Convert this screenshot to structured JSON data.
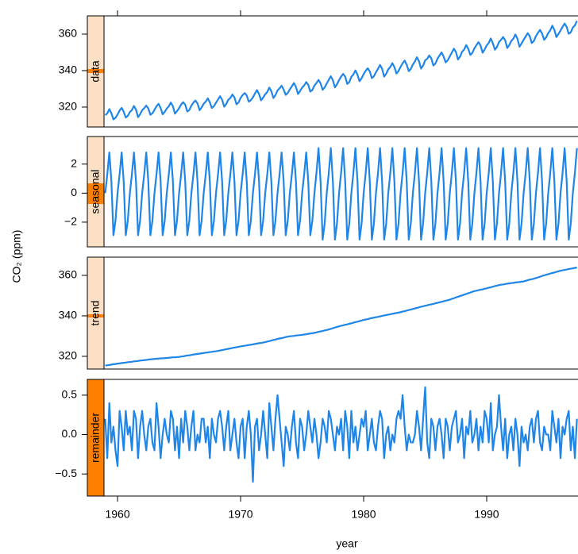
{
  "chart_data": {
    "type": "line",
    "ylabel": "CO₂ (ppm)",
    "xlabel": "year",
    "line_color": "#1f86e8",
    "xlim": [
      1958.9,
      1997.42
    ],
    "xticks": [
      1960,
      1970,
      1980,
      1990
    ],
    "x": [
      1959,
      1959.167,
      1959.333,
      1959.5,
      1959.667,
      1959.833,
      1960,
      1960.167,
      1960.333,
      1960.5,
      1960.667,
      1960.833,
      1961,
      1961.167,
      1961.333,
      1961.5,
      1961.667,
      1961.833,
      1962,
      1962.167,
      1962.333,
      1962.5,
      1962.667,
      1962.833,
      1963,
      1963.167,
      1963.333,
      1963.5,
      1963.667,
      1963.833,
      1964,
      1964.167,
      1964.333,
      1964.5,
      1964.667,
      1964.833,
      1965,
      1965.167,
      1965.333,
      1965.5,
      1965.667,
      1965.833,
      1966,
      1966.167,
      1966.333,
      1966.5,
      1966.667,
      1966.833,
      1967,
      1967.167,
      1967.333,
      1967.5,
      1967.667,
      1967.833,
      1968,
      1968.167,
      1968.333,
      1968.5,
      1968.667,
      1968.833,
      1969,
      1969.167,
      1969.333,
      1969.5,
      1969.667,
      1969.833,
      1970,
      1970.167,
      1970.333,
      1970.5,
      1970.667,
      1970.833,
      1971,
      1971.167,
      1971.333,
      1971.5,
      1971.667,
      1971.833,
      1972,
      1972.167,
      1972.333,
      1972.5,
      1972.667,
      1972.833,
      1973,
      1973.167,
      1973.333,
      1973.5,
      1973.667,
      1973.833,
      1974,
      1974.167,
      1974.333,
      1974.5,
      1974.667,
      1974.833,
      1975,
      1975.167,
      1975.333,
      1975.5,
      1975.667,
      1975.833,
      1976,
      1976.167,
      1976.333,
      1976.5,
      1976.667,
      1976.833,
      1977,
      1977.167,
      1977.333,
      1977.5,
      1977.667,
      1977.833,
      1978,
      1978.167,
      1978.333,
      1978.5,
      1978.667,
      1978.833,
      1979,
      1979.167,
      1979.333,
      1979.5,
      1979.667,
      1979.833,
      1980,
      1980.167,
      1980.333,
      1980.5,
      1980.667,
      1980.833,
      1981,
      1981.167,
      1981.333,
      1981.5,
      1981.667,
      1981.833,
      1982,
      1982.167,
      1982.333,
      1982.5,
      1982.667,
      1982.833,
      1983,
      1983.167,
      1983.333,
      1983.5,
      1983.667,
      1983.833,
      1984,
      1984.167,
      1984.333,
      1984.5,
      1984.667,
      1984.833,
      1985,
      1985.167,
      1985.333,
      1985.5,
      1985.667,
      1985.833,
      1986,
      1986.167,
      1986.333,
      1986.5,
      1986.667,
      1986.833,
      1987,
      1987.167,
      1987.333,
      1987.5,
      1987.667,
      1987.833,
      1988,
      1988.167,
      1988.333,
      1988.5,
      1988.667,
      1988.833,
      1989,
      1989.167,
      1989.333,
      1989.5,
      1989.667,
      1989.833,
      1990,
      1990.167,
      1990.333,
      1990.5,
      1990.667,
      1990.833,
      1991,
      1991.167,
      1991.333,
      1991.5,
      1991.667,
      1991.833,
      1992,
      1992.167,
      1992.333,
      1992.5,
      1992.667,
      1992.833,
      1993,
      1993.167,
      1993.333,
      1993.5,
      1993.667,
      1993.833,
      1994,
      1994.167,
      1994.333,
      1994.5,
      1994.667,
      1994.833,
      1995,
      1995.167,
      1995.333,
      1995.5,
      1995.667,
      1995.833,
      1996,
      1996.167,
      1996.333,
      1996.5,
      1996.667,
      1996.833,
      1997,
      1997.167,
      1997.333
    ],
    "series": [
      {
        "name": "data",
        "ylim": [
          309.1,
          370
        ],
        "yticks": [
          320,
          340,
          360
        ],
        "values": [
          315.6,
          316.6,
          318.9,
          316.6,
          313.3,
          314.1,
          316.0,
          318.1,
          319.6,
          317.4,
          314.3,
          315.2,
          317.3,
          318.4,
          320.6,
          318.6,
          314.5,
          316.1,
          318.3,
          319.4,
          320.8,
          319.3,
          315.8,
          316.6,
          318.5,
          320.5,
          321.8,
          319.5,
          316.1,
          317.4,
          319.2,
          320.5,
          322.5,
          320.5,
          316.4,
          317.8,
          319.4,
          321.4,
          322.7,
          321.3,
          317.6,
          318.4,
          320.8,
          322.5,
          323.6,
          322.0,
          318.3,
          319.8,
          321.8,
          323.0,
          324.8,
          322.6,
          319.5,
          320.5,
          322.4,
          324.2,
          326.0,
          324.0,
          320.2,
          321.7,
          324.0,
          325.0,
          326.9,
          325.3,
          321.5,
          322.5,
          325.0,
          326.6,
          327.7,
          326.3,
          323.0,
          323.8,
          325.3,
          327.5,
          329.3,
          327.1,
          323.7,
          325.2,
          327.0,
          328.3,
          330.7,
          328.7,
          325.0,
          326.6,
          329.1,
          330.3,
          331.7,
          329.6,
          326.7,
          327.8,
          329.7,
          331.4,
          333.2,
          331.0,
          327.2,
          328.8,
          330.7,
          331.9,
          333.7,
          332.2,
          328.5,
          329.4,
          331.8,
          333.2,
          334.9,
          333.0,
          329.5,
          330.8,
          332.9,
          335.0,
          336.9,
          334.7,
          330.8,
          332.5,
          334.8,
          336.7,
          338.2,
          336.7,
          332.7,
          333.7,
          336.6,
          337.9,
          340.1,
          337.7,
          334.2,
          335.8,
          338.1,
          339.9,
          341.3,
          339.5,
          335.9,
          336.9,
          339.1,
          341.0,
          343.1,
          341.0,
          336.7,
          338.3,
          340.7,
          342.0,
          344.1,
          341.9,
          338.4,
          339.8,
          342.0,
          344.0,
          345.5,
          343.2,
          339.7,
          340.9,
          343.3,
          345.1,
          347.3,
          345.1,
          341.1,
          342.8,
          345.6,
          346.5,
          348.3,
          346.7,
          342.8,
          343.9,
          346.5,
          348.3,
          350.0,
          347.7,
          344.5,
          345.7,
          347.8,
          349.9,
          352.0,
          350.2,
          346.1,
          347.7,
          350.3,
          351.6,
          354.0,
          352.0,
          348.6,
          349.7,
          352.2,
          354.0,
          355.6,
          353.8,
          349.8,
          351.6,
          353.8,
          355.2,
          357.6,
          355.0,
          351.5,
          352.9,
          355.7,
          356.9,
          358.4,
          356.7,
          352.4,
          353.9,
          356.3,
          357.5,
          359.8,
          357.4,
          353.1,
          354.9,
          356.9,
          358.7,
          360.5,
          358.8,
          355.1,
          356.2,
          358.9,
          360.7,
          362.3,
          360.3,
          356.9,
          358.2,
          360.6,
          362.1,
          364.6,
          362.3,
          358.4,
          360.1,
          362.0,
          364.0,
          365.8,
          363.9,
          360.2,
          361.0,
          363.6,
          364.8,
          367.2
        ]
      },
      {
        "name": "seasonal",
        "ylim": [
          -3.7,
          3.9
        ],
        "yticks": [
          {
            "value": -2,
            "label": "−2"
          },
          0,
          2
        ],
        "values": [
          0,
          1.3,
          2.8,
          0.8,
          -2.9,
          -1.9,
          0,
          1.3,
          2.8,
          0.8,
          -2.9,
          -1.9,
          0,
          1.3,
          2.8,
          0.8,
          -2.9,
          -1.9,
          0,
          1.3,
          2.8,
          0.8,
          -2.9,
          -1.9,
          0,
          1.3,
          2.8,
          0.8,
          -2.9,
          -1.9,
          0,
          1.3,
          2.8,
          0.8,
          -2.9,
          -1.9,
          0,
          1.3,
          2.8,
          0.8,
          -2.9,
          -1.9,
          0,
          1.3,
          2.8,
          0.8,
          -2.9,
          -1.9,
          0,
          1.3,
          2.8,
          0.8,
          -2.9,
          -1.9,
          0,
          1.3,
          2.8,
          0.8,
          -2.9,
          -1.9,
          0,
          1.3,
          2.8,
          0.8,
          -2.9,
          -1.9,
          0,
          1.3,
          2.8,
          0.8,
          -2.9,
          -1.9,
          0,
          1.3,
          2.8,
          0.8,
          -2.9,
          -1.9,
          0,
          1.3,
          2.8,
          0.8,
          -2.9,
          -1.9,
          0,
          1.3,
          2.8,
          0.8,
          -2.9,
          -1.9,
          0,
          1.3,
          2.8,
          0.8,
          -2.9,
          -1.9,
          0,
          1.3,
          2.8,
          0.8,
          -2.9,
          -1.9,
          0,
          1.4,
          3.1,
          0.8,
          -3.2,
          -2.1,
          0,
          1.4,
          3.1,
          0.8,
          -3.2,
          -2.1,
          0,
          1.4,
          3.1,
          0.8,
          -3.2,
          -2.1,
          0,
          1.4,
          3.1,
          0.8,
          -3.2,
          -2.1,
          0,
          1.4,
          3.1,
          0.8,
          -3.2,
          -2.1,
          0,
          1.4,
          3.1,
          0.8,
          -3.2,
          -2.1,
          0,
          1.4,
          3.1,
          0.8,
          -3.2,
          -2.1,
          0,
          1.4,
          3.1,
          0.8,
          -3.2,
          -2.1,
          0,
          1.4,
          3.1,
          0.8,
          -3.2,
          -2.1,
          0,
          1.4,
          3.1,
          0.8,
          -3.2,
          -2.1,
          0,
          1.4,
          3.1,
          0.8,
          -3.2,
          -2.1,
          0,
          1.4,
          3.1,
          0.8,
          -3.2,
          -2.1,
          0,
          1.4,
          3.1,
          0.8,
          -3.2,
          -2.1,
          0,
          1.4,
          3.1,
          0.8,
          -3.2,
          -2.1,
          0,
          1.4,
          3.1,
          0.8,
          -3.2,
          -2.1,
          0,
          1.4,
          3.1,
          0.8,
          -3.2,
          -2.1,
          0,
          1.4,
          3.1,
          0.8,
          -3.2,
          -2.1,
          0,
          1.4,
          3.1,
          0.8,
          -3.2,
          -2.1,
          0,
          1.4,
          3.1,
          0.8,
          -3.2,
          -2.1,
          0,
          1.4,
          3.1,
          0.8,
          -3.2,
          -2.1,
          0,
          1.4,
          3.1,
          0.8,
          -3.2,
          -2.1,
          0,
          1.4,
          3.1
        ]
      },
      {
        "name": "trend",
        "ylim": [
          313.7,
          369
        ],
        "yticks": [
          320,
          340,
          360
        ],
        "values": [
          315.4,
          315.6,
          315.7,
          315.9,
          316.1,
          316.2,
          316.4,
          316.5,
          316.7,
          316.8,
          316.9,
          317.1,
          317.2,
          317.3,
          317.5,
          317.6,
          317.7,
          317.9,
          318.0,
          318.1,
          318.2,
          318.4,
          318.5,
          318.6,
          318.7,
          318.8,
          318.9,
          319.0,
          319.0,
          319.1,
          319.2,
          319.3,
          319.4,
          319.5,
          319.5,
          319.6,
          319.7,
          319.9,
          320.0,
          320.2,
          320.4,
          320.5,
          320.7,
          320.9,
          321.0,
          321.2,
          321.3,
          321.5,
          321.6,
          321.8,
          321.9,
          322.1,
          322.2,
          322.4,
          322.5,
          322.7,
          322.9,
          323.1,
          323.3,
          323.5,
          323.7,
          323.9,
          324.1,
          324.3,
          324.5,
          324.7,
          324.9,
          325.1,
          325.2,
          325.4,
          325.6,
          325.7,
          325.9,
          326.1,
          326.3,
          326.5,
          326.6,
          326.8,
          327.0,
          327.3,
          327.5,
          327.8,
          328.1,
          328.3,
          328.6,
          328.8,
          329.0,
          329.2,
          329.5,
          329.7,
          329.9,
          330.0,
          330.1,
          330.3,
          330.4,
          330.5,
          330.6,
          330.8,
          330.9,
          331.1,
          331.3,
          331.4,
          331.6,
          331.8,
          332.1,
          332.3,
          332.5,
          332.8,
          333.0,
          333.3,
          333.6,
          333.9,
          334.2,
          334.5,
          334.8,
          335.1,
          335.3,
          335.6,
          335.8,
          336.1,
          336.3,
          336.6,
          336.9,
          337.1,
          337.4,
          337.7,
          338.0,
          338.2,
          338.4,
          338.7,
          338.9,
          339.1,
          339.3,
          339.5,
          339.7,
          340.0,
          340.2,
          340.4,
          340.6,
          340.8,
          341.0,
          341.2,
          341.4,
          341.6,
          341.8,
          342.1,
          342.3,
          342.6,
          342.9,
          343.1,
          343.4,
          343.7,
          343.9,
          344.2,
          344.5,
          344.7,
          345.0,
          345.2,
          345.5,
          345.7,
          345.9,
          346.2,
          346.4,
          346.7,
          346.9,
          347.2,
          347.5,
          347.7,
          348.0,
          348.4,
          348.7,
          349.1,
          349.4,
          349.8,
          350.1,
          350.5,
          350.8,
          351.2,
          351.5,
          351.9,
          352.2,
          352.4,
          352.7,
          352.9,
          353.1,
          353.4,
          353.6,
          353.9,
          354.1,
          354.4,
          354.7,
          354.9,
          355.2,
          355.4,
          355.5,
          355.7,
          355.9,
          356.0,
          356.2,
          356.3,
          356.5,
          356.6,
          356.7,
          356.9,
          357.0,
          357.3,
          357.6,
          357.9,
          358.1,
          358.4,
          358.7,
          359.0,
          359.3,
          359.7,
          360.0,
          360.3,
          360.6,
          360.9,
          361.2,
          361.4,
          361.7,
          362.0,
          362.3,
          362.5,
          362.7,
          362.9,
          363.1,
          363.3,
          363.5,
          363.7,
          363.9
        ]
      },
      {
        "name": "remainder",
        "ylim": [
          -0.78,
          0.7
        ],
        "yticks": [
          {
            "value": -0.5,
            "label": "−0.5"
          },
          {
            "value": 0,
            "label": "0.0"
          },
          0.5
        ],
        "values": [
          0.2,
          -0.3,
          0.4,
          -0.1,
          0.1,
          -0.2,
          -0.4,
          0.3,
          0.1,
          -0.2,
          0.3,
          0.0,
          0.1,
          -0.2,
          0.3,
          0.2,
          -0.3,
          0.1,
          0.3,
          0.0,
          -0.2,
          0.1,
          0.2,
          -0.1,
          -0.2,
          0.4,
          0.1,
          -0.3,
          0.0,
          0.2,
          0.0,
          -0.1,
          0.3,
          0.2,
          -0.2,
          0.1,
          -0.3,
          0.2,
          -0.1,
          0.3,
          0.1,
          -0.2,
          0.1,
          0.3,
          -0.2,
          0.0,
          -0.1,
          0.2,
          0.2,
          -0.1,
          0.1,
          -0.3,
          0.2,
          0.0,
          -0.1,
          0.2,
          0.3,
          0.1,
          -0.2,
          0.1,
          0.3,
          -0.2,
          0.0,
          0.2,
          -0.1,
          -0.3,
          0.1,
          0.2,
          -0.3,
          0.1,
          0.3,
          0.0,
          -0.6,
          0.1,
          0.2,
          -0.2,
          0.0,
          0.3,
          0.0,
          -0.3,
          0.4,
          0.1,
          -0.2,
          0.2,
          0.5,
          0.2,
          -0.1,
          -0.4,
          0.1,
          0.0,
          -0.2,
          0.1,
          0.3,
          -0.1,
          -0.3,
          0.2,
          0.1,
          -0.2,
          0.0,
          0.3,
          0.1,
          -0.1,
          0.2,
          0.0,
          -0.3,
          -0.1,
          0.2,
          0.1,
          -0.1,
          0.3,
          0.2,
          0.0,
          -0.2,
          0.1,
          0.0,
          0.2,
          -0.2,
          0.3,
          0.1,
          -0.3,
          0.3,
          -0.1,
          0.1,
          -0.2,
          0.0,
          0.2,
          0.1,
          0.3,
          -0.2,
          0.0,
          0.2,
          -0.1,
          -0.2,
          0.1,
          0.3,
          0.2,
          -0.3,
          0.0,
          0.1,
          -0.2,
          0.0,
          -0.1,
          0.2,
          0.3,
          0.2,
          0.5,
          0.1,
          -0.2,
          0.0,
          -0.1,
          -0.1,
          0.0,
          0.3,
          0.1,
          -0.2,
          0.2,
          0.6,
          -0.1,
          -0.3,
          0.2,
          0.1,
          -0.2,
          0.1,
          0.2,
          0.0,
          -0.3,
          0.2,
          0.1,
          -0.2,
          0.1,
          0.2,
          0.3,
          -0.1,
          0.0,
          0.2,
          -0.3,
          0.1,
          0.0,
          0.3,
          -0.1,
          0.0,
          0.2,
          -0.2,
          0.1,
          -0.1,
          0.3,
          0.2,
          -0.1,
          0.4,
          -0.2,
          0.0,
          0.1,
          0.5,
          0.1,
          -0.2,
          0.2,
          -0.3,
          0.0,
          0.1,
          -0.2,
          0.2,
          0.0,
          -0.4,
          0.1,
          -0.1,
          0.0,
          -0.2,
          0.1,
          0.2,
          -0.1,
          0.2,
          0.3,
          -0.1,
          -0.2,
          0.1,
          0.0,
          0.0,
          -0.2,
          0.3,
          0.1,
          -0.1,
          0.2,
          -0.3,
          0.1,
          0.0,
          0.2,
          0.3,
          -0.2,
          0.1,
          -0.3,
          0.2
        ]
      }
    ]
  }
}
